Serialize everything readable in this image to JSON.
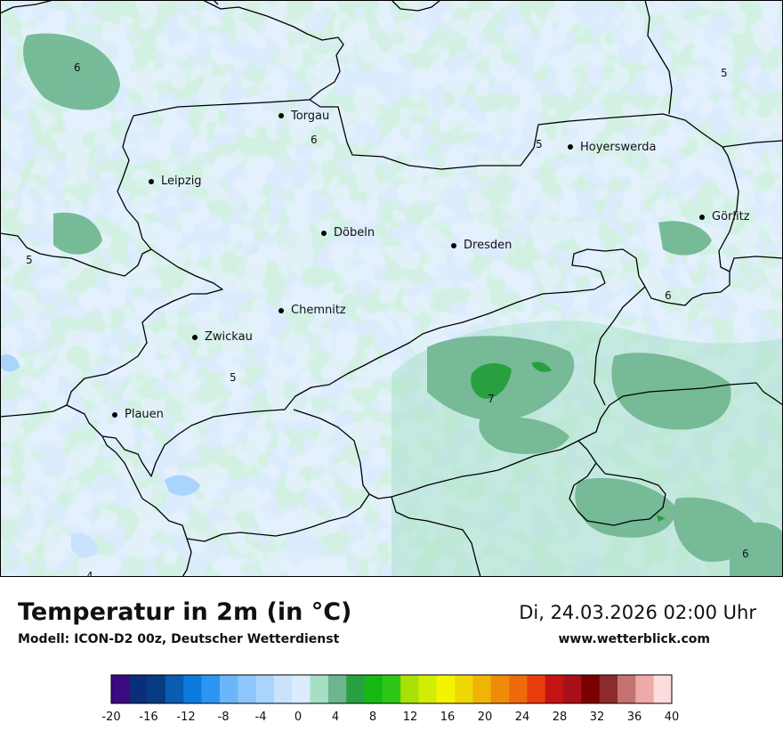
{
  "header": {
    "title": "Temperatur in 2m (in °C)",
    "subtitle": "Modell: ICON-D2 00z, Deutscher Wetterdienst",
    "datetime": "Di, 24.03.2026 02:00 Uhr",
    "website": "www.wetterblick.com"
  },
  "cities": [
    {
      "name": "Torgau"
    },
    {
      "name": "Hoyerswerda"
    },
    {
      "name": "Leipzig"
    },
    {
      "name": "Görlitz"
    },
    {
      "name": "Döbeln"
    },
    {
      "name": "Dresden"
    },
    {
      "name": "Chemnitz"
    },
    {
      "name": "Zwickau"
    },
    {
      "name": "Plauen"
    }
  ],
  "isotherm_labels": [
    "6",
    "5",
    "6",
    "5",
    "5",
    "6",
    "5",
    "7",
    "4",
    "6"
  ],
  "legend": {
    "colors": [
      "#3a0a80",
      "#0a2e7a",
      "#073d80",
      "#0a5cb0",
      "#0b7cdc",
      "#2b96f2",
      "#6ab6f8",
      "#8cc6fa",
      "#a9d4fb",
      "#c9e3fc",
      "#dcebfd",
      "#a6e0c4",
      "#6cb58e",
      "#28a040",
      "#17b814",
      "#2fc716",
      "#a8e008",
      "#d2ec06",
      "#f4f402",
      "#f0d804",
      "#f0b404",
      "#f08a08",
      "#ee6a0a",
      "#e83c0a",
      "#c41414",
      "#a8101c",
      "#7a0000",
      "#8c2a2c",
      "#c47272",
      "#f0a9a9",
      "#fcdcdc"
    ],
    "tick_labels": [
      "-20",
      "-16",
      "-12",
      "-8",
      "-4",
      "0",
      "4",
      "8",
      "12",
      "16",
      "20",
      "24",
      "28",
      "32",
      "36",
      "40"
    ]
  }
}
